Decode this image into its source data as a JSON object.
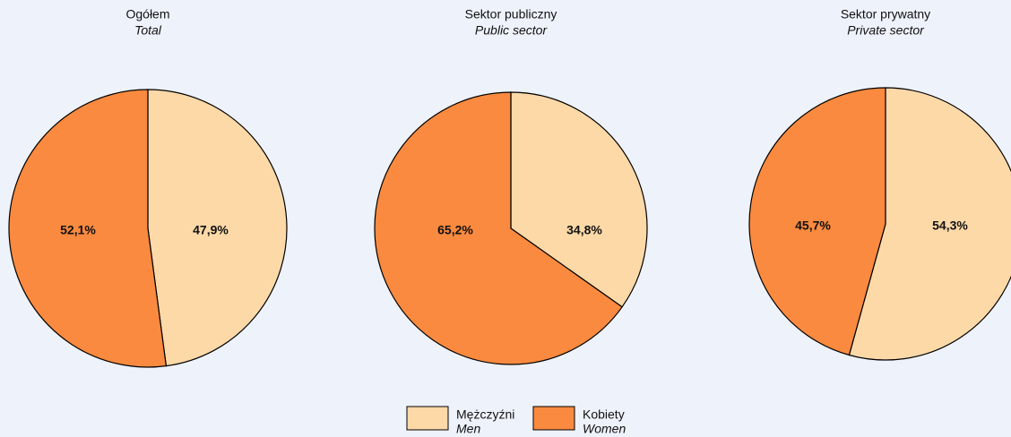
{
  "chart_data": [
    {
      "type": "pie",
      "title": "Ogółem",
      "subtitle": "Total",
      "values": [
        47.9,
        52.1
      ],
      "value_labels": [
        "47,9%",
        "52,1%"
      ]
    },
    {
      "type": "pie",
      "title": "Sektor publiczny",
      "subtitle": "Public sector",
      "values": [
        34.8,
        65.2
      ],
      "value_labels": [
        "34,8%",
        "65,2%"
      ]
    },
    {
      "type": "pie",
      "title": "Sektor prywatny",
      "subtitle": "Private sector",
      "values": [
        54.3,
        45.7
      ],
      "value_labels": [
        "54,3%",
        "45,7%"
      ]
    }
  ],
  "legend": [
    {
      "name": "Mężczyźni",
      "subtitle": "Men",
      "color": "#fdd9a8"
    },
    {
      "name": "Kobiety",
      "subtitle": "Women",
      "color": "#f98a3f"
    }
  ]
}
